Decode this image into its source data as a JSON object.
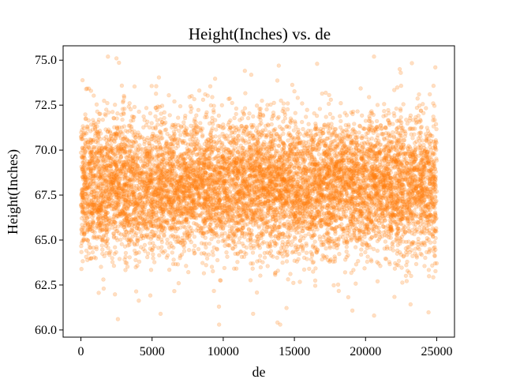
{
  "chart_data": {
    "type": "scatter",
    "title": "Height(Inches) vs. de",
    "xlabel": "de",
    "ylabel": "Height(Inches)",
    "xlim": [
      -1250,
      26250
    ],
    "ylim": [
      59.6,
      75.8
    ],
    "xticks": [
      0,
      5000,
      10000,
      15000,
      20000,
      25000
    ],
    "xtick_labels": [
      "0",
      "5000",
      "10000",
      "15000",
      "20000",
      "25000"
    ],
    "yticks": [
      60.0,
      62.5,
      65.0,
      67.5,
      70.0,
      72.5,
      75.0
    ],
    "ytick_labels": [
      "60.0",
      "62.5",
      "65.0",
      "67.5",
      "70.0",
      "72.5",
      "75.0"
    ],
    "grid": false,
    "legend": "none",
    "point_color": "#ff7f0e",
    "point_alpha": 0.25,
    "distribution": {
      "n_points": 25000,
      "x_range": [
        1,
        25000
      ],
      "y_mean": 68.0,
      "y_std": 1.9,
      "y_min": 60.3,
      "y_max": 75.2
    },
    "outliers": [
      {
        "x": 1900,
        "y": 75.2
      },
      {
        "x": 2500,
        "y": 75.1
      },
      {
        "x": 13900,
        "y": 74.7
      },
      {
        "x": 16600,
        "y": 74.8
      },
      {
        "x": 22400,
        "y": 74.5
      },
      {
        "x": 24900,
        "y": 74.6
      },
      {
        "x": 2600,
        "y": 60.6
      },
      {
        "x": 5600,
        "y": 60.9
      },
      {
        "x": 14000,
        "y": 60.3
      },
      {
        "x": 20600,
        "y": 60.8
      },
      {
        "x": 9700,
        "y": 61.3
      },
      {
        "x": 12100,
        "y": 60.9
      }
    ]
  }
}
